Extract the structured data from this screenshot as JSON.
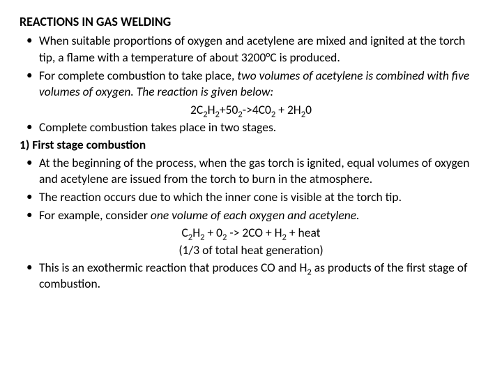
{
  "title": "REACTIONS IN GAS WELDING",
  "bullets_a": {
    "b0": {
      "p1": "When suitable proportions of oxygen and acetylene are mixed and ignited at the torch tip, a flame with a temperature of about 3200°C is produced."
    },
    "b1": {
      "p1": "For complete combustion to take place, ",
      "i1": "two volumes of acetylene is combined with five volumes of oxygen. The reaction is given below:"
    }
  },
  "eq1": {
    "t0": "2C",
    "s0": "2",
    "t1": "H",
    "s1": "2",
    "t2": "+50",
    "s2": "2",
    "t3": "->4C0",
    "s3": "2",
    "t4": " + 2H",
    "s4": "2",
    "t5": "0"
  },
  "bullets_b": {
    "b0": {
      "p1": "Complete combustion takes place in two stages."
    }
  },
  "stage1_label": "1) First stage combustion",
  "bullets_c": {
    "b0": {
      "p1": "At the beginning of the process, when the gas torch is ignited, equal volumes of oxygen and acetylene are issued from the torch to burn in the atmosphere."
    },
    "b1": {
      "p1": "The reaction occurs due to which the inner cone is visible at the torch tip."
    },
    "b2": {
      "p1": "For example, consider ",
      "i1": "one volume of each oxygen and acetylene."
    }
  },
  "eq2": {
    "t0": "C",
    "s0": "2",
    "t1": "H",
    "s1": "2",
    "t2": " + 0",
    "s2": "2",
    "t3": " -> 2CO + H",
    "s3": "2",
    "t4": " + heat"
  },
  "eq2_note": "(1/3 of total heat generation)",
  "bullets_d": {
    "b0": {
      "p1": "This is an exothermic reaction that produces CO and H",
      "s1": "2",
      "p2": " as products of the first stage of combustion."
    }
  }
}
